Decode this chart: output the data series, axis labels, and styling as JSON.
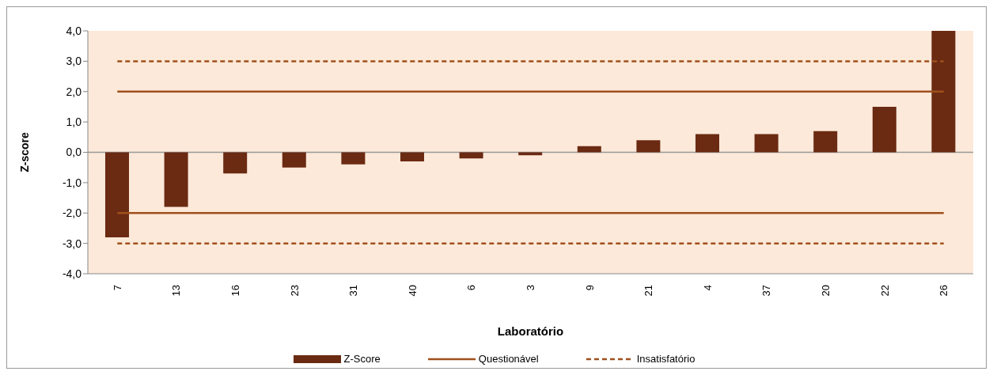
{
  "chart_data": {
    "type": "bar",
    "xlabel": "Laboratório",
    "ylabel": "Z-score",
    "categories": [
      "7",
      "13",
      "16",
      "23",
      "31",
      "40",
      "6",
      "3",
      "9",
      "21",
      "4",
      "37",
      "20",
      "22",
      "26"
    ],
    "series": [
      {
        "name": "Z-Score",
        "color": "#6b2a12",
        "values": [
          -2.8,
          -1.8,
          -0.7,
          -0.5,
          -0.4,
          -0.3,
          -0.2,
          -0.1,
          0.2,
          0.4,
          0.6,
          0.6,
          0.7,
          1.5,
          4.0
        ]
      },
      {
        "name": "Questionável",
        "type": "line",
        "color": "#a0501c",
        "line_style": "solid",
        "values": [
          2,
          2,
          2,
          2,
          2,
          2,
          2,
          2,
          2,
          2,
          2,
          2,
          2,
          2,
          2
        ]
      },
      {
        "type": "line",
        "color": "#a0501c",
        "line_style": "solid",
        "values": [
          -2,
          -2,
          -2,
          -2,
          -2,
          -2,
          -2,
          -2,
          -2,
          -2,
          -2,
          -2,
          -2,
          -2,
          -2
        ]
      },
      {
        "name": "Insatisfatório",
        "type": "line",
        "color": "#a0501c",
        "line_style": "dashed",
        "values": [
          3,
          3,
          3,
          3,
          3,
          3,
          3,
          3,
          3,
          3,
          3,
          3,
          3,
          3,
          3
        ]
      },
      {
        "type": "line",
        "color": "#a0501c",
        "line_style": "dashed",
        "values": [
          -3,
          -3,
          -3,
          -3,
          -3,
          -3,
          -3,
          -3,
          -3,
          -3,
          -3,
          -3,
          -3,
          -3,
          -3
        ]
      }
    ],
    "ylim": [
      -4,
      4
    ],
    "yticks": [
      {
        "value": -4,
        "label": "-4,0"
      },
      {
        "value": -3,
        "label": "-3,0"
      },
      {
        "value": -2,
        "label": "-2,0"
      },
      {
        "value": -1,
        "label": "-1,0"
      },
      {
        "value": 0,
        "label": "0,0"
      },
      {
        "value": 1,
        "label": "1,0"
      },
      {
        "value": 2,
        "label": "2,0"
      },
      {
        "value": 3,
        "label": "3,0"
      },
      {
        "value": 4,
        "label": "4,0"
      }
    ],
    "grid": false,
    "legend": "bottom",
    "marker": "none"
  }
}
